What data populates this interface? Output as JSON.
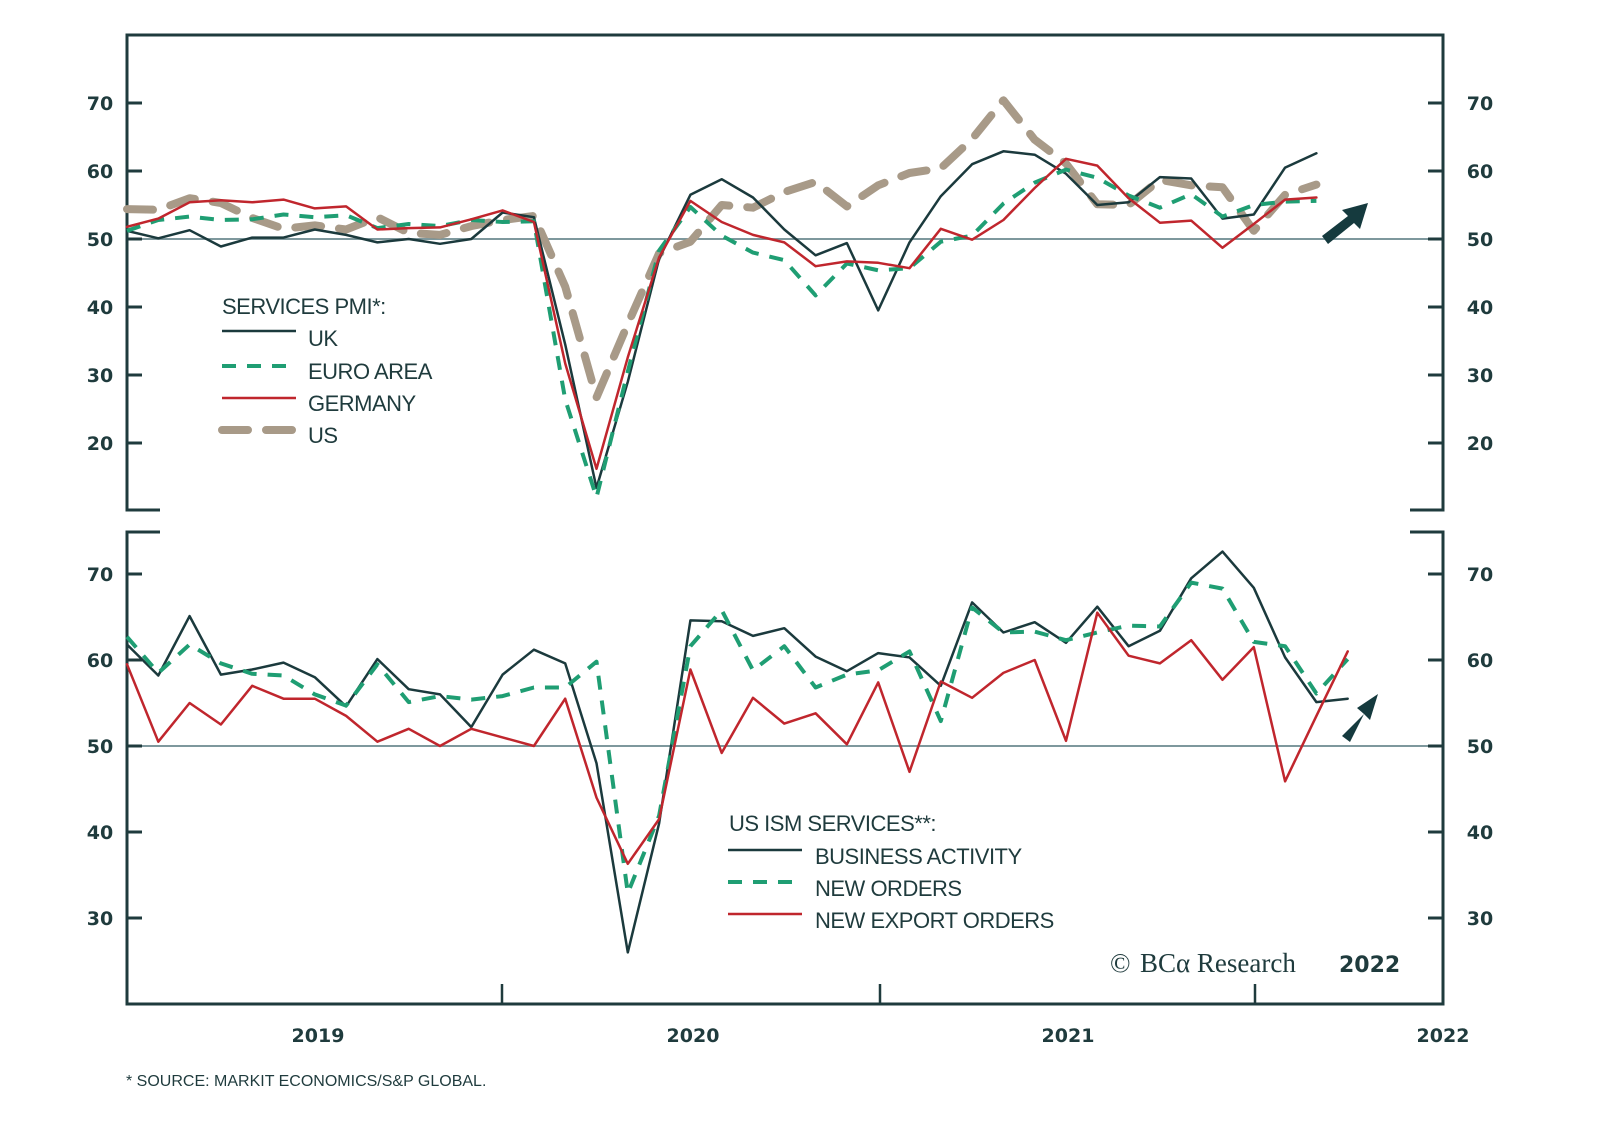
{
  "chart_data": [
    {
      "type": "line",
      "panel": "top",
      "title": "",
      "legend_title": "SERVICES PMI*:",
      "legend_placement": "center-left",
      "ylim": [
        10,
        80
      ],
      "yticks": [
        20,
        30,
        40,
        50,
        60,
        70
      ],
      "ytick_labels": [
        "20",
        "30",
        "40",
        "50",
        "60",
        "70"
      ],
      "reference_line": 50,
      "x_start": "2019-01",
      "x_step": "month",
      "annotation": "up-arrow",
      "series": [
        {
          "name": "UK",
          "style": "solid",
          "color": "#1b3a3d",
          "values": [
            51.2,
            50.1,
            51.3,
            48.9,
            50.2,
            50.2,
            51.4,
            50.6,
            49.5,
            50.0,
            49.3,
            50.0,
            53.9,
            53.2,
            34.5,
            13.4,
            29.0,
            47.1,
            56.5,
            58.8,
            56.1,
            51.4,
            47.6,
            49.4,
            39.5,
            49.5,
            56.3,
            61.0,
            62.9,
            62.4,
            59.6,
            55.0,
            55.4,
            59.1,
            58.9,
            53.0,
            53.6,
            60.5,
            62.6,
            null
          ]
        },
        {
          "name": "EURO AREA",
          "style": "dashed",
          "color": "#1f9e73",
          "values": [
            51.2,
            52.8,
            53.3,
            52.8,
            52.9,
            53.6,
            53.2,
            53.5,
            51.6,
            52.2,
            51.9,
            52.8,
            52.5,
            52.6,
            26.4,
            12.0,
            30.5,
            48.3,
            54.7,
            50.5,
            48.0,
            46.9,
            41.7,
            46.4,
            45.4,
            45.7,
            49.6,
            50.5,
            55.2,
            58.3,
            60.2,
            59.0,
            56.4,
            54.6,
            56.6,
            53.3,
            55.0,
            55.5,
            55.6,
            null
          ]
        },
        {
          "name": "GERMANY",
          "style": "solid",
          "color": "#c0262d",
          "values": [
            51.8,
            53.0,
            55.4,
            55.7,
            55.4,
            55.8,
            54.5,
            54.8,
            51.4,
            51.6,
            51.7,
            52.9,
            54.2,
            52.5,
            31.7,
            16.2,
            32.6,
            47.3,
            55.6,
            52.5,
            50.6,
            49.5,
            46.0,
            46.7,
            46.5,
            45.7,
            51.5,
            49.9,
            52.8,
            57.5,
            61.8,
            60.8,
            56.0,
            52.4,
            52.7,
            48.7,
            52.2,
            55.8,
            56.1,
            null
          ]
        },
        {
          "name": "US",
          "style": "long-dashed",
          "color": "#a89a88",
          "values": [
            54.4,
            54.3,
            56.0,
            55.3,
            53.1,
            51.5,
            52.0,
            51.4,
            53.2,
            50.9,
            50.6,
            51.9,
            52.8,
            53.4,
            43.0,
            26.7,
            37.5,
            47.9,
            49.6,
            55.0,
            54.6,
            56.9,
            58.4,
            54.8,
            57.9,
            59.7,
            60.4,
            64.7,
            70.4,
            64.6,
            61.1,
            55.1,
            55.0,
            58.7,
            57.9,
            57.6,
            51.2,
            56.5,
            58.0,
            null
          ]
        }
      ]
    },
    {
      "type": "line",
      "panel": "bottom",
      "title": "",
      "legend_title": "US ISM SERVICES**:",
      "legend_placement": "bottom-center",
      "ylim": [
        20,
        75
      ],
      "yticks": [
        30,
        40,
        50,
        60,
        70
      ],
      "ytick_labels": [
        "30",
        "40",
        "50",
        "60",
        "70"
      ],
      "reference_line": 50,
      "x_start": "2019-01",
      "x_step": "month",
      "annotation": "up-arrow",
      "series": [
        {
          "name": "BUSINESS ACTIVITY",
          "style": "solid",
          "color": "#1b3a3d",
          "values": [
            61.8,
            58.2,
            65.1,
            58.3,
            58.9,
            59.7,
            58.0,
            54.6,
            60.1,
            56.6,
            56.0,
            52.2,
            58.3,
            61.2,
            59.6,
            48.0,
            26.0,
            41.0,
            64.6,
            64.5,
            62.8,
            63.7,
            60.4,
            58.7,
            60.8,
            60.3,
            57.0,
            66.7,
            63.2,
            64.4,
            62.0,
            66.2,
            61.6,
            63.4,
            69.5,
            72.6,
            68.4,
            60.3,
            55.1,
            55.5
          ]
        },
        {
          "name": "NEW ORDERS",
          "style": "dashed",
          "color": "#1f9e73",
          "values": [
            62.7,
            58.5,
            61.8,
            59.6,
            58.4,
            58.2,
            56.0,
            54.7,
            59.5,
            55.1,
            55.8,
            55.4,
            55.8,
            56.8,
            56.8,
            59.8,
            32.9,
            41.9,
            61.6,
            65.8,
            58.8,
            61.6,
            56.8,
            58.3,
            58.8,
            61.0,
            52.9,
            66.1,
            63.2,
            63.3,
            62.3,
            63.2,
            64.0,
            63.9,
            69.0,
            68.3,
            62.1,
            61.6,
            56.1,
            60.1
          ]
        },
        {
          "name": "NEW EXPORT ORDERS",
          "style": "solid",
          "color": "#c0262d",
          "values": [
            59.5,
            50.5,
            55.0,
            52.5,
            57.0,
            55.5,
            55.5,
            53.5,
            50.5,
            52.0,
            50.0,
            52.0,
            51.0,
            50.0,
            55.5,
            44.0,
            36.3,
            41.5,
            58.9,
            49.2,
            55.6,
            52.6,
            53.8,
            50.2,
            57.4,
            47.0,
            57.5,
            55.6,
            58.5,
            60.0,
            50.6,
            65.5,
            60.5,
            59.6,
            62.3,
            57.7,
            61.5,
            45.9,
            53.5,
            61.0
          ]
        }
      ]
    }
  ],
  "x_axis": {
    "tick_labels": [
      "2019",
      "2020",
      "2021",
      "2022"
    ]
  },
  "legends": {
    "top": {
      "title": "SERVICES PMI*:",
      "items": [
        "UK",
        "EURO AREA",
        "GERMANY",
        "US"
      ]
    },
    "bottom": {
      "title": "US ISM SERVICES**:",
      "items": [
        "BUSINESS ACTIVITY",
        "NEW ORDERS",
        "NEW EXPORT ORDERS"
      ]
    }
  },
  "copyright": {
    "symbol": "©",
    "brand": "BCα Research",
    "year": "2022"
  },
  "footnote": "*  SOURCE: MARKIT ECONOMICS/S&P GLOBAL.",
  "colors": {
    "axis": "#1f3b3d",
    "reference_line": "#6c8a8f",
    "arrow": "#153a3e"
  }
}
